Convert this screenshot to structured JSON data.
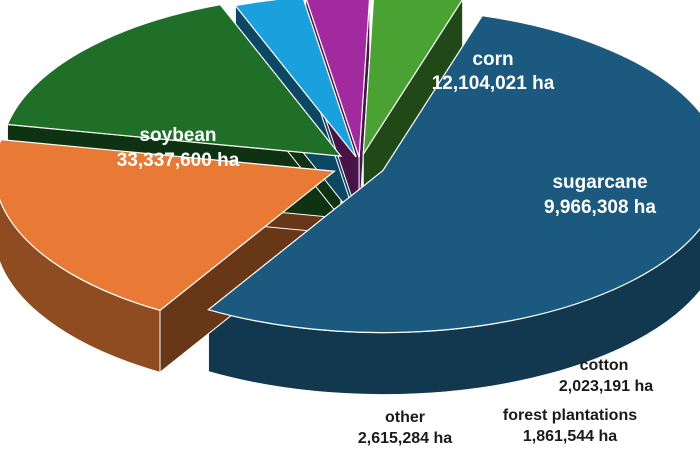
{
  "chart_data": {
    "type": "pie",
    "style": "3d-exploded",
    "unit": "ha",
    "slices": [
      {
        "name": "soybean",
        "value": 33337600,
        "label": "33,337,600 ha",
        "color": "#1b5a7e"
      },
      {
        "name": "corn",
        "value": 12104021,
        "label": "12,104,021 ha",
        "color": "#e87a35"
      },
      {
        "name": "sugarcane",
        "value": 9966308,
        "label": "9,966,308 ha",
        "color": "#1f6f28"
      },
      {
        "name": "cotton",
        "value": 2023191,
        "label": "2,023,191 ha",
        "color": "#1aa0dd"
      },
      {
        "name": "forest plantations",
        "value": 1861544,
        "label": "1,861,544 ha",
        "color": "#a02a9e"
      },
      {
        "name": "other",
        "value": 2615284,
        "label": "2,615,284 ha",
        "color": "#4aa233"
      }
    ]
  }
}
